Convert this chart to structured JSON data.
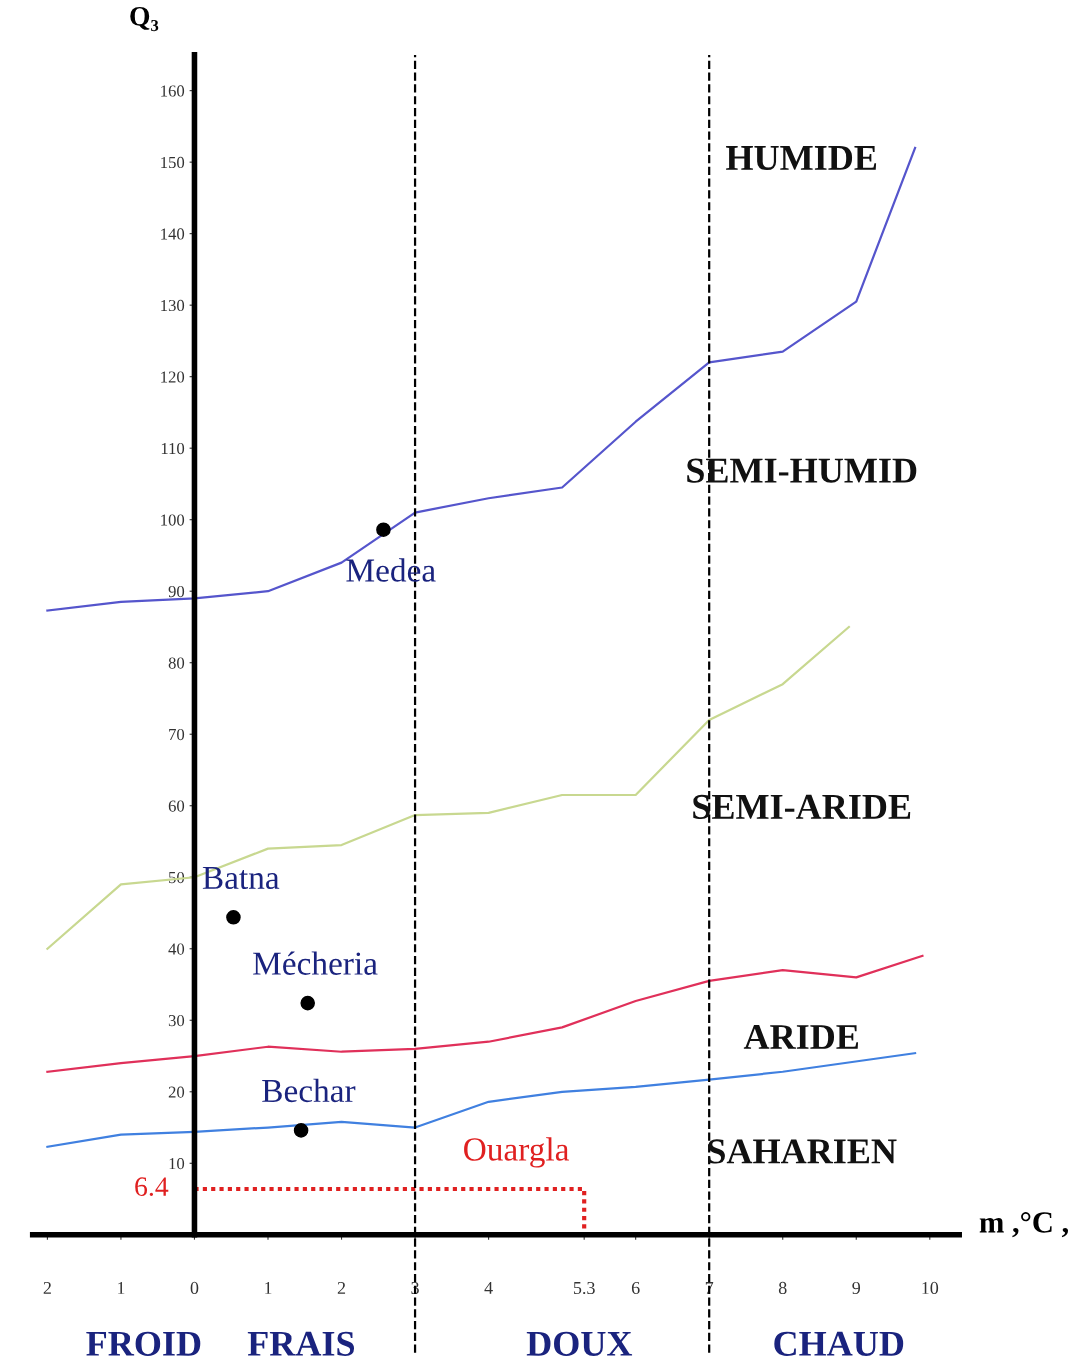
{
  "chart_data": {
    "type": "line",
    "ylabel": "Q₃",
    "xlabel": "m ,°C ,",
    "xlim": [
      -2.2,
      10.4
    ],
    "ylim": [
      0,
      165
    ],
    "xticks": [
      {
        "value": -2,
        "label": "2"
      },
      {
        "value": -1,
        "label": "1"
      },
      0,
      1,
      2,
      3,
      4,
      {
        "value": 5.3,
        "label": "5.3"
      },
      6,
      7,
      8,
      9,
      10
    ],
    "yticks": [
      10,
      20,
      30,
      40,
      50,
      60,
      70,
      80,
      90,
      100,
      110,
      120,
      130,
      140,
      150,
      160
    ],
    "grid": false,
    "marker": "none",
    "line_style": "solid",
    "series": [
      {
        "color": "#5555cc",
        "x": [
          -2,
          -1,
          0,
          1,
          2,
          3,
          4,
          5,
          6,
          7,
          8,
          9,
          9.8
        ],
        "values": [
          87.3,
          88.5,
          89,
          90,
          94,
          101,
          103,
          104.5,
          113.7,
          122,
          123.5,
          130.5,
          152
        ]
      },
      {
        "color": "#c8d890",
        "x": [
          -2,
          -1,
          0,
          1,
          2,
          3,
          4,
          5,
          6,
          7,
          8,
          8.9
        ],
        "values": [
          40,
          49,
          50,
          54,
          54.5,
          58.7,
          59,
          61.5,
          61.5,
          72,
          77,
          85
        ]
      },
      {
        "color": "#e0305a",
        "x": [
          -2,
          -1,
          0,
          1,
          2,
          3,
          4,
          5,
          6,
          7,
          8,
          9,
          9.9
        ],
        "values": [
          22.8,
          24,
          25,
          26.3,
          25.6,
          26,
          27,
          29,
          32.7,
          35.5,
          37,
          36,
          39
        ]
      },
      {
        "color": "#4080e0",
        "x": [
          -2,
          -1,
          0,
          1,
          2,
          3,
          4,
          5,
          6,
          7,
          8,
          9.8
        ],
        "values": [
          12.3,
          14,
          14.4,
          15,
          15.8,
          15,
          18.6,
          20,
          20.7,
          21.7,
          22.8,
          25.4
        ]
      },
      {
        "type": "scatter",
        "marker": "circle",
        "color": "#000000",
        "x": [
          2.57,
          0.53,
          1.54,
          1.45
        ],
        "values": [
          98.6,
          44.4,
          32.4,
          14.6
        ],
        "value_labels": [
          "Medea",
          "Batna",
          "Mécheria",
          "Bechar"
        ]
      },
      {
        "name": "Ouargla",
        "line_style": "dotted",
        "color": "#e02020",
        "x": [
          0,
          5.3,
          5.3
        ],
        "values": [
          6.4,
          6.4,
          0
        ],
        "value_labels": [
          "6.4",
          null,
          null
        ]
      }
    ],
    "ref_lines": [
      {
        "axis": "x",
        "value": 3,
        "color": "#000000",
        "line_style": "dashed"
      },
      {
        "axis": "x",
        "value": 7,
        "color": "#000000",
        "line_style": "dashed"
      }
    ],
    "annotations": [
      "HUMIDE",
      "SEMI-HUMID",
      "SEMI-ARIDE",
      "ARIDE",
      "SAHARIEN",
      "FROID",
      "FRAIS",
      "DOUX",
      "CHAUD"
    ]
  }
}
